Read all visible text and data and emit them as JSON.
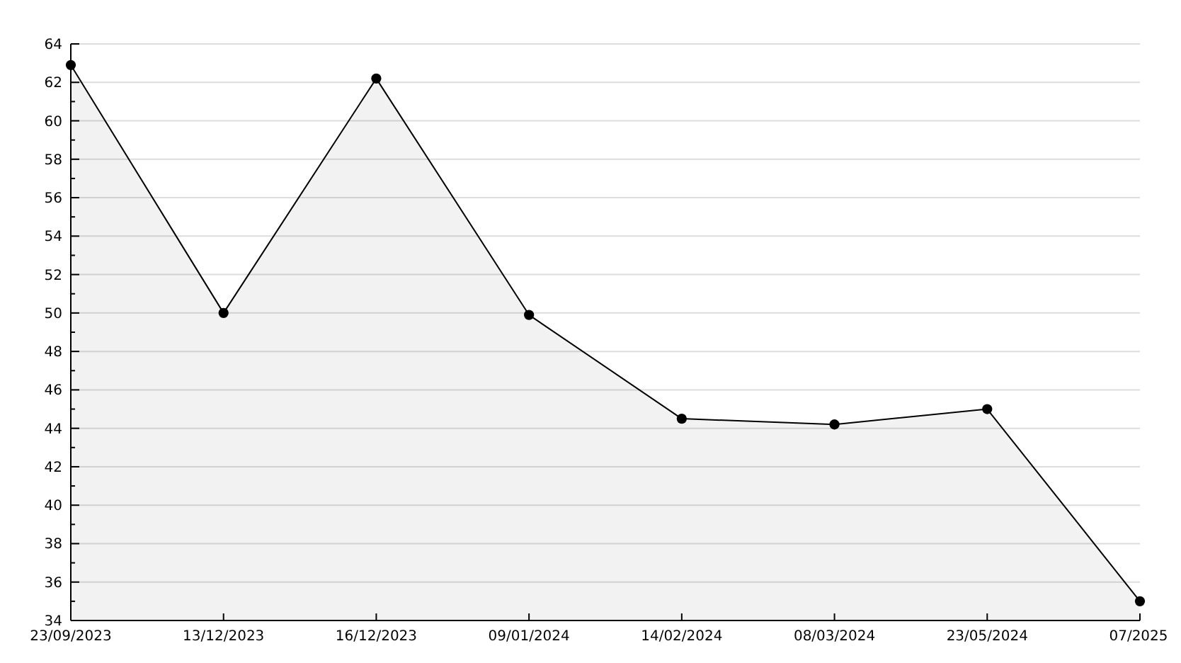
{
  "chart_data": {
    "type": "area",
    "categories": [
      "23/09/2023",
      "13/12/2023",
      "16/12/2023",
      "09/01/2024",
      "14/02/2024",
      "08/03/2024",
      "23/05/2024",
      "07/2025"
    ],
    "series": [
      {
        "color": "#000000",
        "values": [
          62.9,
          50.0,
          62.2,
          49.9,
          44.5,
          44.2,
          45.0,
          35.0
        ]
      }
    ],
    "ylim": [
      34,
      64
    ],
    "yticks": [
      34,
      {
        "value": 35,
        "label": null
      },
      36,
      {
        "value": 37,
        "label": null
      },
      38,
      {
        "value": 39,
        "label": null
      },
      40,
      {
        "value": 41,
        "label": null
      },
      42,
      {
        "value": 43,
        "label": null
      },
      44,
      {
        "value": 45,
        "label": null
      },
      46,
      {
        "value": 47,
        "label": null
      },
      48,
      {
        "value": 49,
        "label": null
      },
      50,
      {
        "value": 51,
        "label": null
      },
      52,
      {
        "value": 53,
        "label": null
      },
      54,
      {
        "value": 55,
        "label": null
      },
      56,
      {
        "value": 57,
        "label": null
      },
      58,
      {
        "value": 59,
        "label": null
      },
      60,
      {
        "value": 61,
        "label": null
      },
      62,
      {
        "value": 63,
        "label": null
      },
      64
    ],
    "grid": "y",
    "marker": "circle",
    "line_style": "solid"
  }
}
